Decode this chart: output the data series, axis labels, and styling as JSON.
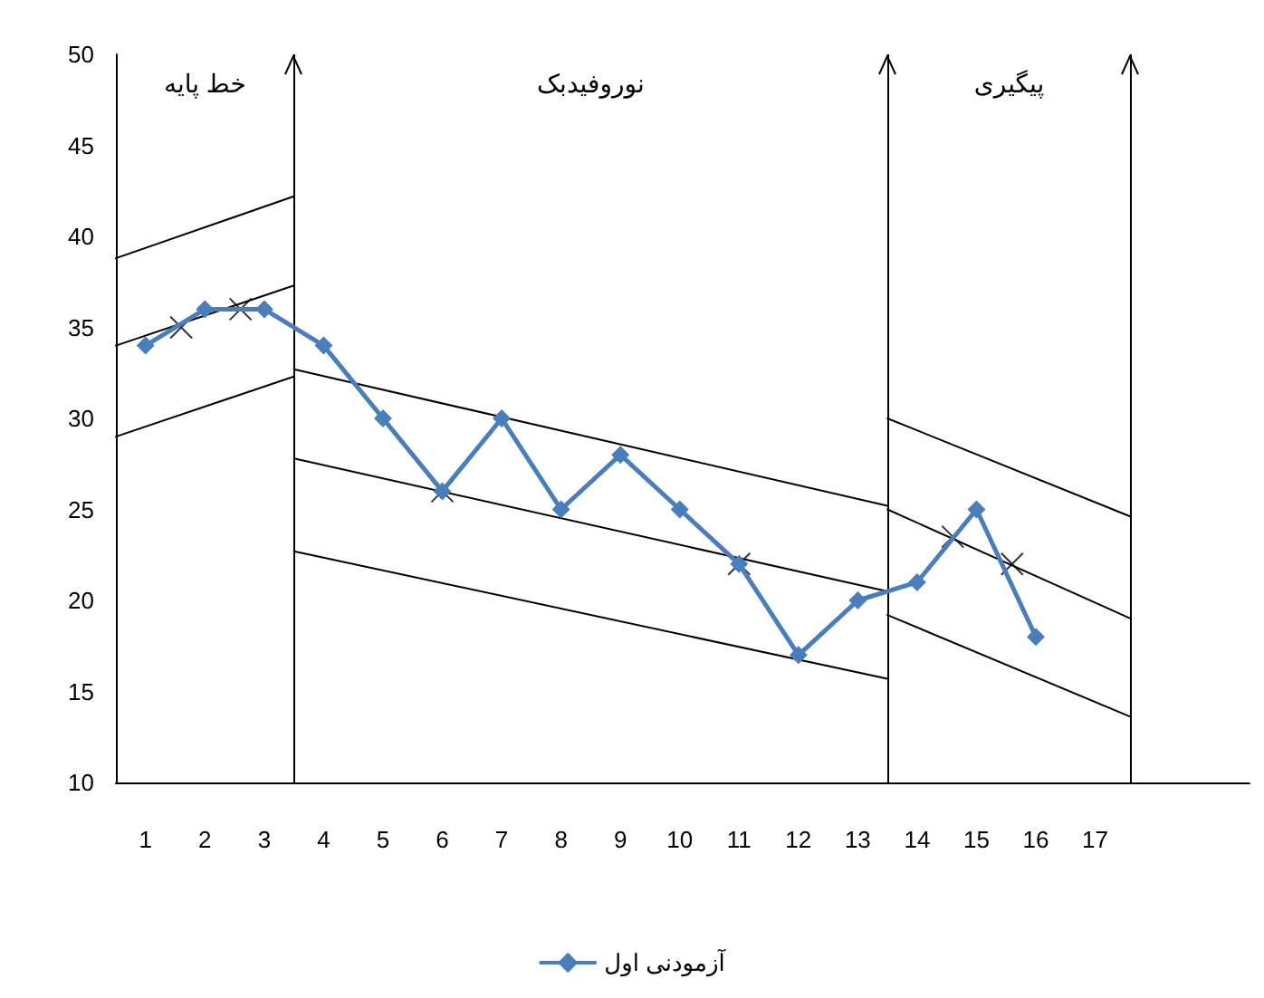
{
  "chart_data": {
    "type": "line",
    "x": [
      1,
      2,
      3,
      4,
      5,
      6,
      7,
      8,
      9,
      10,
      11,
      12,
      13,
      14,
      15,
      16
    ],
    "series": [
      {
        "name": "آزمودنی اول",
        "color": "#4a7ebb",
        "marker": "diamond",
        "values": [
          34,
          36,
          36,
          34,
          30,
          26,
          30,
          25,
          28,
          25,
          22,
          17,
          20,
          21,
          25,
          18
        ]
      },
      {
        "type": "line",
        "color": "#000000",
        "marker": "none",
        "x": [
          0.5,
          3.5
        ],
        "values": [
          38.8,
          42.2
        ]
      },
      {
        "type": "line",
        "color": "#000000",
        "marker": "none",
        "x": [
          0.5,
          3.5
        ],
        "values": [
          34,
          37.3
        ]
      },
      {
        "type": "line",
        "color": "#000000",
        "marker": "none",
        "x": [
          0.5,
          3.5
        ],
        "values": [
          29,
          32.3
        ]
      },
      {
        "type": "line",
        "color": "#000000",
        "marker": "none",
        "x": [
          3.5,
          13.5
        ],
        "values": [
          32.7,
          25.2
        ]
      },
      {
        "type": "line",
        "color": "#000000",
        "marker": "none",
        "x": [
          3.5,
          13.5
        ],
        "values": [
          27.8,
          20.5
        ]
      },
      {
        "type": "line",
        "color": "#000000",
        "marker": "none",
        "x": [
          3.5,
          13.5
        ],
        "values": [
          22.7,
          15.7
        ]
      },
      {
        "type": "line",
        "color": "#000000",
        "marker": "none",
        "x": [
          13.5,
          17.6
        ],
        "values": [
          30,
          24.6
        ]
      },
      {
        "type": "line",
        "color": "#000000",
        "marker": "none",
        "x": [
          13.5,
          17.6
        ],
        "values": [
          25,
          19
        ]
      },
      {
        "type": "line",
        "color": "#000000",
        "marker": "none",
        "x": [
          13.5,
          17.6
        ],
        "values": [
          19.2,
          13.6
        ]
      },
      {
        "type": "scatter",
        "color": "#000000",
        "marker": "cross",
        "x": [
          1.6,
          2.6,
          6,
          11,
          14.6,
          15.6
        ],
        "values": [
          35,
          36,
          26,
          22,
          23.5,
          22
        ]
      }
    ],
    "xlim": [
      0.5,
      19.6
    ],
    "xticks": [
      1,
      2,
      3,
      4,
      5,
      6,
      7,
      8,
      9,
      10,
      11,
      12,
      13,
      14,
      15,
      16,
      17
    ],
    "ylim": [
      10,
      50
    ],
    "yticks": [
      10,
      15,
      20,
      25,
      30,
      35,
      40,
      45,
      50
    ],
    "ref_lines": [
      {
        "axis": "x",
        "value": 3.5,
        "color": "#000000"
      },
      {
        "axis": "x",
        "value": 13.5,
        "color": "#000000"
      },
      {
        "axis": "x",
        "value": 17.6,
        "color": "#000000"
      }
    ],
    "annotations": [
      "خط پایه",
      "نوروفیدبک",
      "پیگیری"
    ],
    "grid": false,
    "legend": "bottom",
    "line_style": "solid"
  }
}
